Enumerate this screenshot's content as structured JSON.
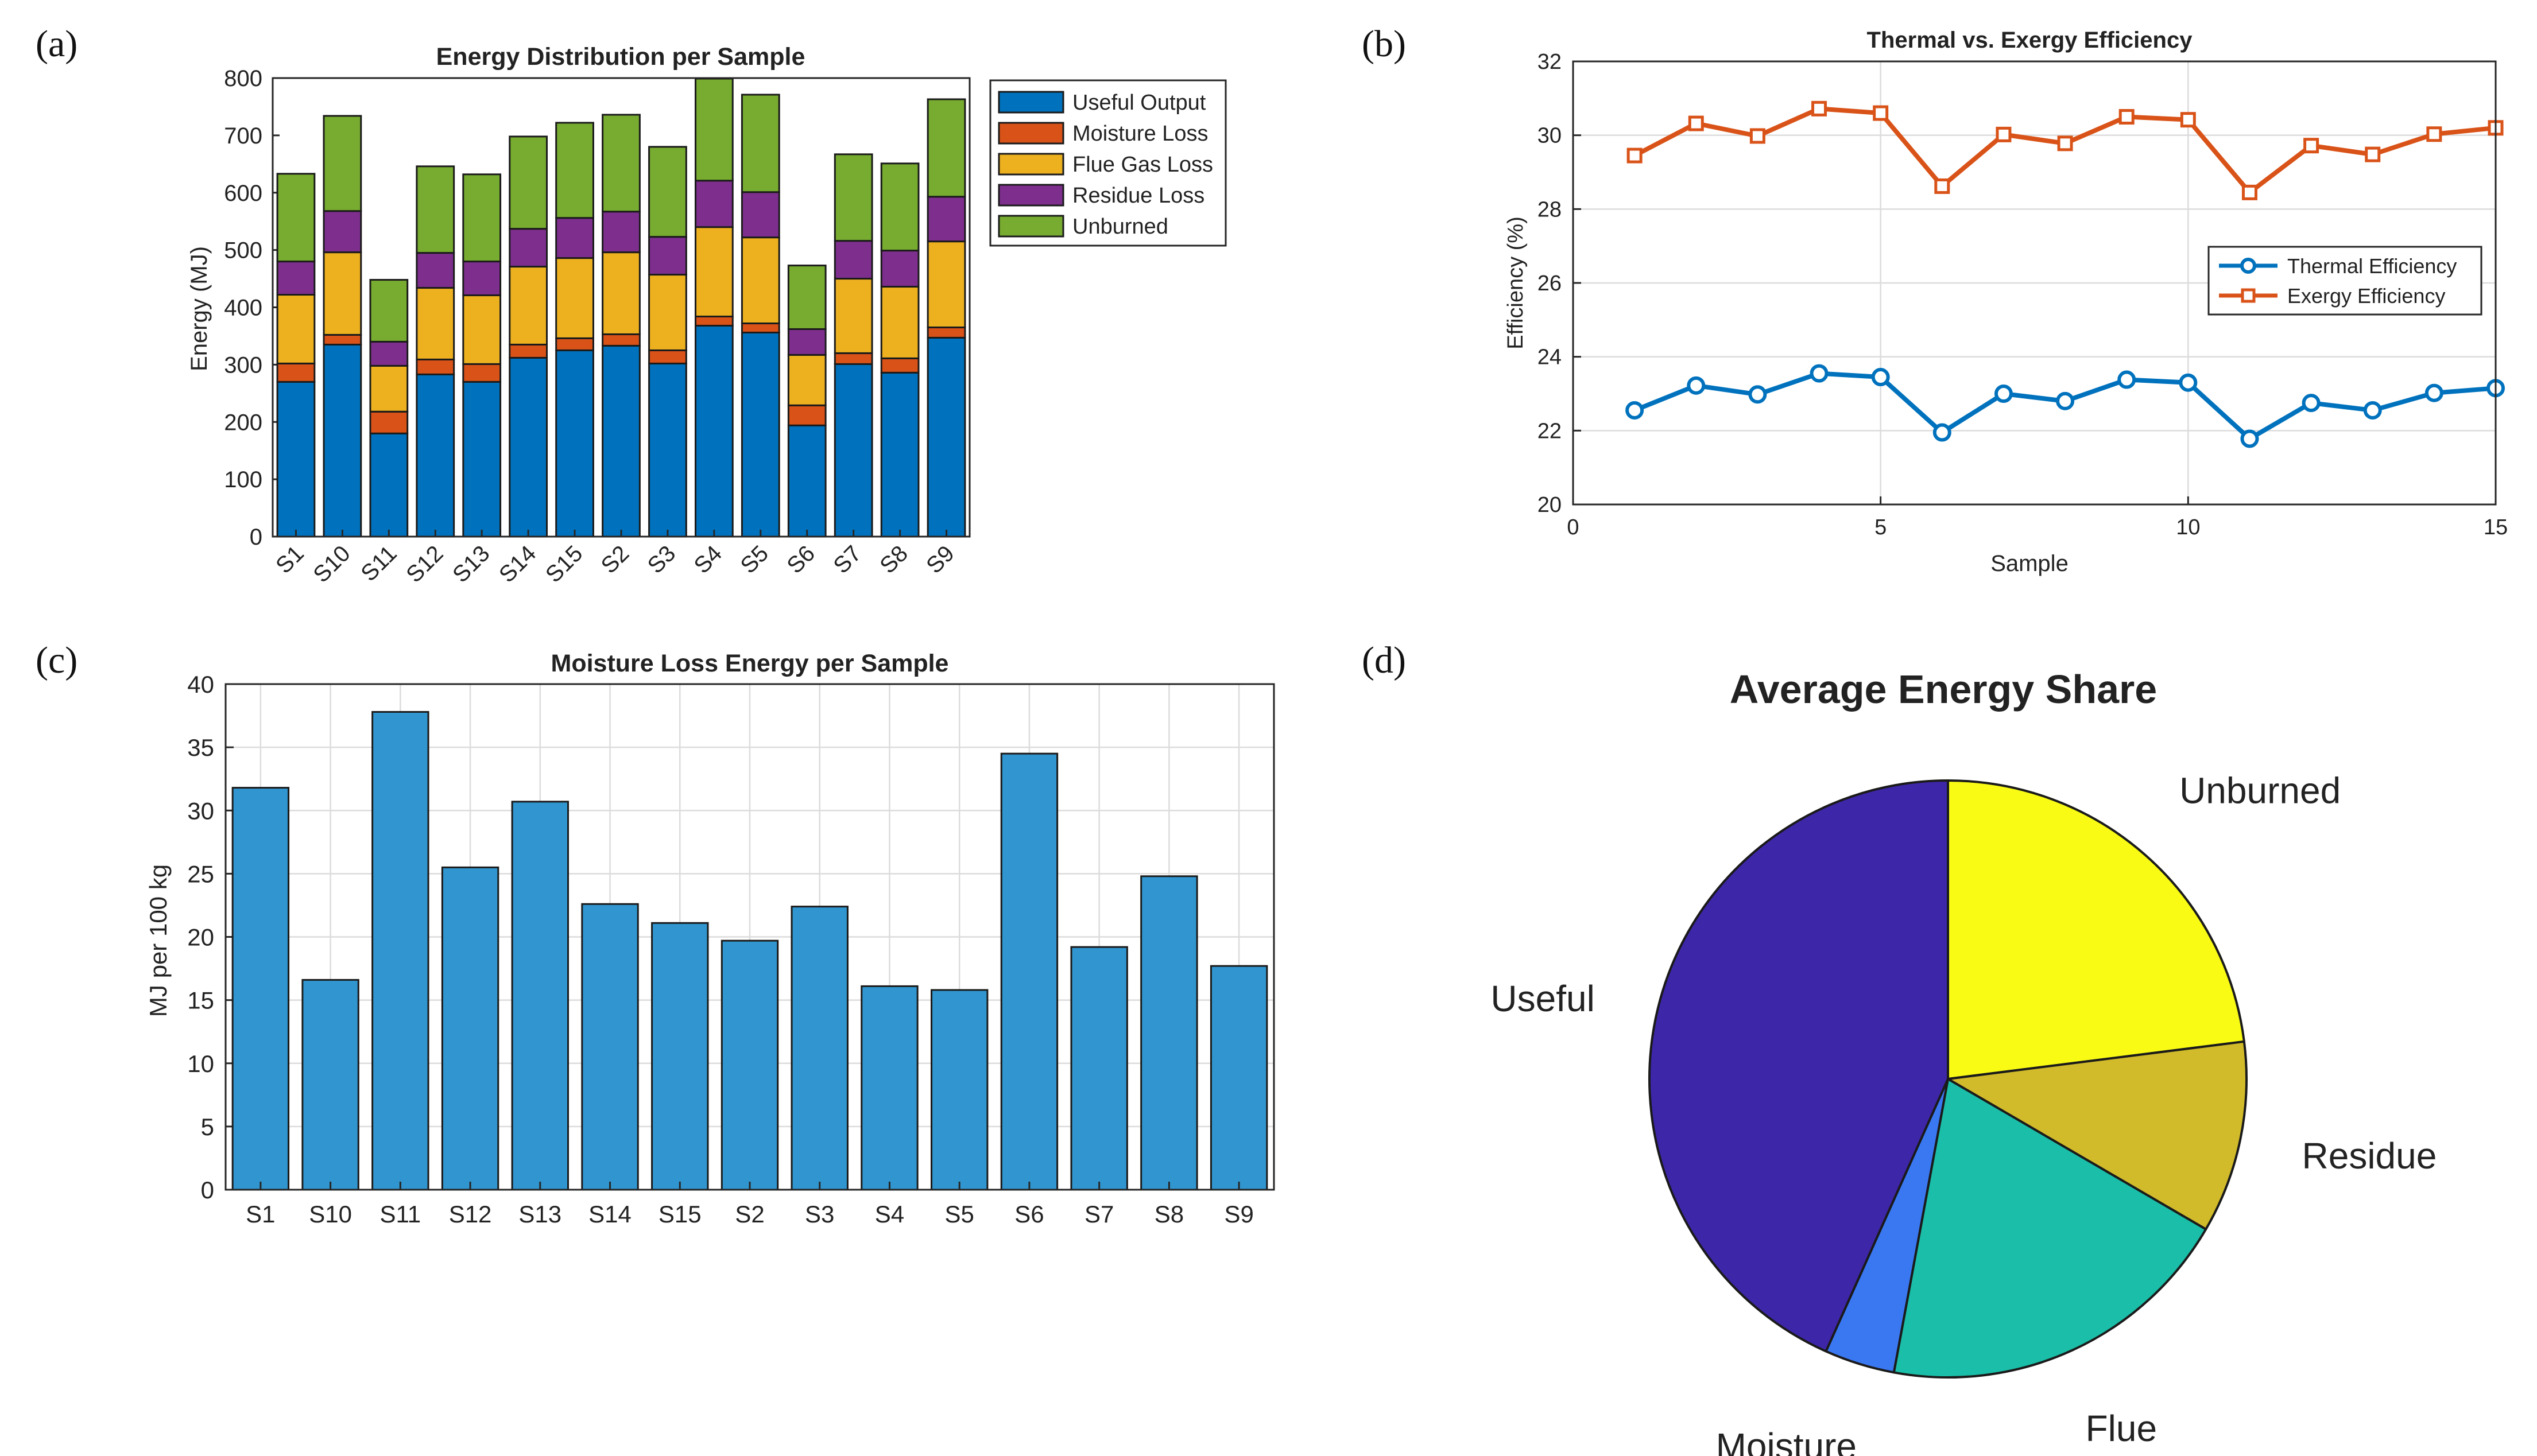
{
  "panels": [
    "(a)",
    "(b)",
    "(c)",
    "(d)"
  ],
  "chart_data": [
    {
      "type": "bar",
      "stacked": true,
      "title": "Energy Distribution per Sample",
      "xlabel": "",
      "ylabel": "Energy (MJ)",
      "ylim": [
        0,
        800
      ],
      "yticks": [
        0,
        100,
        200,
        300,
        400,
        500,
        600,
        700,
        800
      ],
      "grid": false,
      "legend_position": "outside-right",
      "categories": [
        "S1",
        "S10",
        "S11",
        "S12",
        "S13",
        "S14",
        "S15",
        "S2",
        "S3",
        "S4",
        "S5",
        "S6",
        "S7",
        "S8",
        "S9"
      ],
      "series": [
        {
          "name": "Useful Output",
          "color": "#0072BD",
          "values": [
            270,
            335,
            180,
            283,
            270,
            312,
            325,
            333,
            302,
            368,
            356,
            194,
            301,
            286,
            347
          ]
        },
        {
          "name": "Moisture Loss",
          "color": "#D95319",
          "values": [
            32,
            17,
            38,
            26,
            31,
            23,
            21,
            20,
            23,
            16,
            16,
            35,
            19,
            25,
            18
          ]
        },
        {
          "name": "Flue Gas Loss",
          "color": "#EDB120",
          "values": [
            120,
            144,
            80,
            125,
            120,
            136,
            140,
            143,
            132,
            156,
            150,
            88,
            130,
            125,
            150
          ]
        },
        {
          "name": "Residue Loss",
          "color": "#7E2F8E",
          "values": [
            58,
            72,
            42,
            61,
            59,
            66,
            70,
            71,
            66,
            81,
            79,
            45,
            66,
            63,
            78
          ]
        },
        {
          "name": "Unburned",
          "color": "#77AC30",
          "values": [
            153,
            166,
            108,
            151,
            152,
            161,
            166,
            169,
            157,
            178,
            170,
            111,
            151,
            152,
            170
          ]
        }
      ]
    },
    {
      "type": "line",
      "title": "Thermal vs. Exergy Efficiency",
      "xlabel": "Sample",
      "ylabel": "Efficiency (%)",
      "xlim": [
        0,
        15
      ],
      "ylim": [
        20,
        32
      ],
      "xticks": [
        0,
        5,
        10,
        15
      ],
      "yticks": [
        20,
        22,
        24,
        26,
        28,
        30,
        32
      ],
      "grid": true,
      "legend_position": "right-middle",
      "x": [
        1,
        2,
        3,
        4,
        5,
        6,
        7,
        8,
        9,
        10,
        11,
        12,
        13,
        14,
        15
      ],
      "series": [
        {
          "name": "Thermal Efficiency",
          "color": "#0072BD",
          "marker": "circle",
          "values": [
            22.55,
            23.22,
            22.98,
            23.55,
            23.45,
            21.95,
            23.0,
            22.8,
            23.38,
            23.3,
            21.78,
            22.75,
            22.55,
            23.02,
            23.15
          ]
        },
        {
          "name": "Exergy Efficiency",
          "color": "#D95319",
          "marker": "square",
          "values": [
            29.45,
            30.32,
            29.98,
            30.72,
            30.6,
            28.62,
            30.02,
            29.78,
            30.5,
            30.42,
            28.45,
            29.72,
            29.48,
            30.03,
            30.2
          ]
        }
      ]
    },
    {
      "type": "bar",
      "title": "Moisture Loss Energy per Sample",
      "xlabel": "",
      "ylabel": "MJ per 100 kg",
      "ylim": [
        0,
        40
      ],
      "yticks": [
        0,
        5,
        10,
        15,
        20,
        25,
        30,
        35,
        40
      ],
      "grid": true,
      "color": "#3196CF",
      "categories": [
        "S1",
        "S10",
        "S11",
        "S12",
        "S13",
        "S14",
        "S15",
        "S2",
        "S3",
        "S4",
        "S5",
        "S6",
        "S7",
        "S8",
        "S9"
      ],
      "values": [
        31.8,
        16.6,
        37.8,
        25.5,
        30.7,
        22.6,
        21.1,
        19.7,
        22.4,
        16.1,
        15.8,
        34.5,
        19.2,
        24.8,
        17.7
      ]
    },
    {
      "type": "pie",
      "title": "Average Energy Share",
      "labels": [
        "Unburned",
        "Residue",
        "Flue",
        "Moisture",
        "Useful"
      ],
      "values": [
        23.0,
        10.4,
        19.5,
        3.8,
        43.3
      ],
      "colors": [
        "#F9FB15",
        "#D1BB2A",
        "#1BBEA8",
        "#3A78F2",
        "#3E26A8"
      ]
    }
  ]
}
